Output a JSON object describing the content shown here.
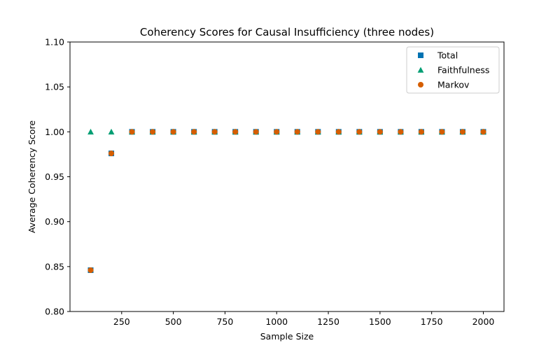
{
  "chart_data": {
    "type": "scatter",
    "title": "Coherency Scores for Causal Insufficiency (three nodes)",
    "xlabel": "Sample Size",
    "ylabel": "Average Coherency Score",
    "xlim": [
      0,
      2100
    ],
    "ylim": [
      0.8,
      1.1
    ],
    "xticks": [
      250,
      500,
      750,
      1000,
      1250,
      1500,
      1750,
      2000
    ],
    "xtick_labels": [
      "250",
      "500",
      "750",
      "1000",
      "1250",
      "1500",
      "1750",
      "2000"
    ],
    "yticks": [
      0.8,
      0.85,
      0.9,
      0.95,
      1.0,
      1.05,
      1.1
    ],
    "ytick_labels": [
      "0.80",
      "0.85",
      "0.90",
      "0.95",
      "1.00",
      "1.05",
      "1.10"
    ],
    "grid": false,
    "legend_position": "top-right",
    "x": [
      100,
      200,
      300,
      400,
      500,
      600,
      700,
      800,
      900,
      1000,
      1100,
      1200,
      1300,
      1400,
      1500,
      1600,
      1700,
      1800,
      1900,
      2000
    ],
    "series": [
      {
        "name": "Total",
        "marker": "square",
        "color": "#0072b2",
        "values": [
          0.846,
          0.976,
          1.0,
          1.0,
          1.0,
          1.0,
          1.0,
          1.0,
          1.0,
          1.0,
          1.0,
          1.0,
          1.0,
          1.0,
          1.0,
          1.0,
          1.0,
          1.0,
          1.0,
          1.0
        ]
      },
      {
        "name": "Faithfulness",
        "marker": "triangle",
        "color": "#009e73",
        "values": [
          1.0,
          1.0,
          1.0,
          1.0,
          1.0,
          1.0,
          1.0,
          1.0,
          1.0,
          1.0,
          1.0,
          1.0,
          1.0,
          1.0,
          1.0,
          1.0,
          1.0,
          1.0,
          1.0,
          1.0
        ]
      },
      {
        "name": "Markov",
        "marker": "circle",
        "color": "#d55e00",
        "values": [
          0.846,
          0.976,
          1.0,
          1.0,
          1.0,
          1.0,
          1.0,
          1.0,
          1.0,
          1.0,
          1.0,
          1.0,
          1.0,
          1.0,
          1.0,
          1.0,
          1.0,
          1.0,
          1.0,
          1.0
        ]
      }
    ]
  }
}
